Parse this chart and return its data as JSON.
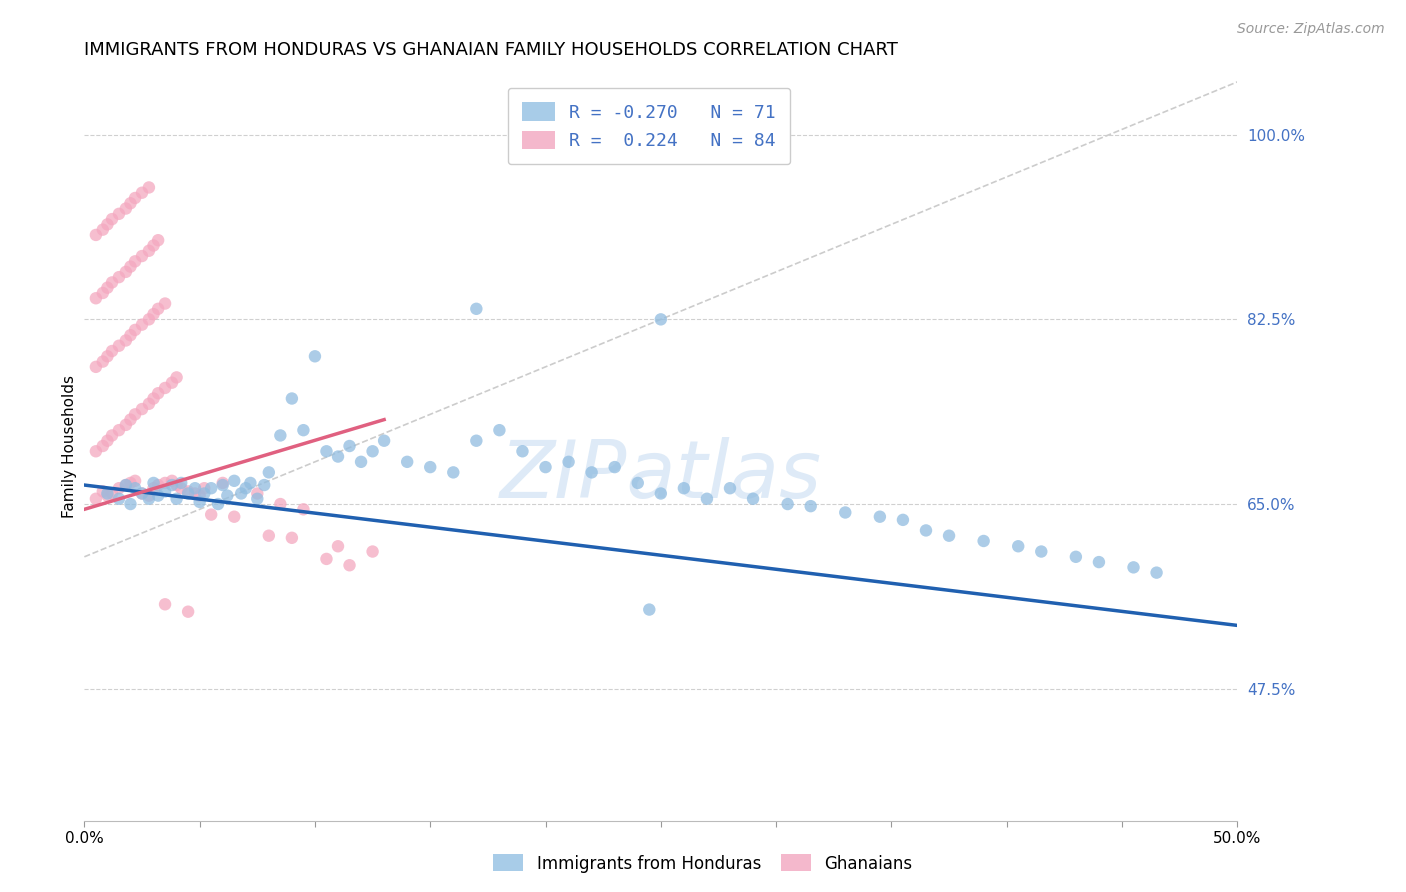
{
  "title": "IMMIGRANTS FROM HONDURAS VS GHANAIAN FAMILY HOUSEHOLDS CORRELATION CHART",
  "source": "Source: ZipAtlas.com",
  "ylabel": "Family Households",
  "ytick_vals": [
    0.475,
    0.65,
    0.825,
    1.0
  ],
  "ytick_labels": [
    "47.5%",
    "65.0%",
    "82.5%",
    "100.0%"
  ],
  "xtick_vals": [
    0.0,
    0.05,
    0.1,
    0.15,
    0.2,
    0.25,
    0.3,
    0.35,
    0.4,
    0.45,
    0.5
  ],
  "xlim": [
    0.0,
    0.5
  ],
  "ylim": [
    0.35,
    1.06
  ],
  "blue_scatter_x": [
    0.01,
    0.015,
    0.018,
    0.02,
    0.022,
    0.025,
    0.028,
    0.03,
    0.032,
    0.035,
    0.038,
    0.04,
    0.042,
    0.045,
    0.048,
    0.05,
    0.052,
    0.055,
    0.058,
    0.06,
    0.062,
    0.065,
    0.068,
    0.07,
    0.072,
    0.075,
    0.078,
    0.08,
    0.085,
    0.09,
    0.095,
    0.1,
    0.105,
    0.11,
    0.115,
    0.12,
    0.125,
    0.13,
    0.14,
    0.15,
    0.16,
    0.17,
    0.18,
    0.19,
    0.2,
    0.21,
    0.22,
    0.23,
    0.24,
    0.25,
    0.26,
    0.27,
    0.28,
    0.29,
    0.305,
    0.315,
    0.33,
    0.345,
    0.355,
    0.365,
    0.375,
    0.39,
    0.405,
    0.415,
    0.43,
    0.44,
    0.455,
    0.465,
    0.25,
    0.17,
    0.245
  ],
  "blue_scatter_y": [
    0.66,
    0.655,
    0.668,
    0.65,
    0.665,
    0.66,
    0.655,
    0.67,
    0.658,
    0.662,
    0.668,
    0.655,
    0.67,
    0.66,
    0.665,
    0.652,
    0.66,
    0.665,
    0.65,
    0.668,
    0.658,
    0.672,
    0.66,
    0.665,
    0.67,
    0.655,
    0.668,
    0.68,
    0.715,
    0.75,
    0.72,
    0.79,
    0.7,
    0.695,
    0.705,
    0.69,
    0.7,
    0.71,
    0.69,
    0.685,
    0.68,
    0.71,
    0.72,
    0.7,
    0.685,
    0.69,
    0.68,
    0.685,
    0.67,
    0.66,
    0.665,
    0.655,
    0.665,
    0.655,
    0.65,
    0.648,
    0.642,
    0.638,
    0.635,
    0.625,
    0.62,
    0.615,
    0.61,
    0.605,
    0.6,
    0.595,
    0.59,
    0.585,
    0.825,
    0.835,
    0.55
  ],
  "pink_scatter_x": [
    0.005,
    0.008,
    0.01,
    0.012,
    0.015,
    0.018,
    0.02,
    0.022,
    0.025,
    0.028,
    0.03,
    0.032,
    0.035,
    0.038,
    0.04,
    0.042,
    0.045,
    0.048,
    0.05,
    0.052,
    0.005,
    0.008,
    0.01,
    0.012,
    0.015,
    0.018,
    0.02,
    0.022,
    0.025,
    0.028,
    0.03,
    0.032,
    0.035,
    0.038,
    0.04,
    0.005,
    0.008,
    0.01,
    0.012,
    0.015,
    0.018,
    0.02,
    0.022,
    0.025,
    0.028,
    0.03,
    0.032,
    0.035,
    0.005,
    0.008,
    0.01,
    0.012,
    0.015,
    0.018,
    0.02,
    0.022,
    0.025,
    0.028,
    0.03,
    0.032,
    0.005,
    0.008,
    0.01,
    0.012,
    0.015,
    0.018,
    0.02,
    0.022,
    0.025,
    0.028,
    0.055,
    0.065,
    0.08,
    0.09,
    0.11,
    0.125,
    0.085,
    0.095,
    0.06,
    0.075,
    0.035,
    0.045,
    0.105,
    0.115
  ],
  "pink_scatter_y": [
    0.655,
    0.662,
    0.658,
    0.66,
    0.665,
    0.668,
    0.67,
    0.672,
    0.66,
    0.658,
    0.665,
    0.668,
    0.67,
    0.672,
    0.668,
    0.665,
    0.662,
    0.66,
    0.658,
    0.665,
    0.7,
    0.705,
    0.71,
    0.715,
    0.72,
    0.725,
    0.73,
    0.735,
    0.74,
    0.745,
    0.75,
    0.755,
    0.76,
    0.765,
    0.77,
    0.78,
    0.785,
    0.79,
    0.795,
    0.8,
    0.805,
    0.81,
    0.815,
    0.82,
    0.825,
    0.83,
    0.835,
    0.84,
    0.845,
    0.85,
    0.855,
    0.86,
    0.865,
    0.87,
    0.875,
    0.88,
    0.885,
    0.89,
    0.895,
    0.9,
    0.905,
    0.91,
    0.915,
    0.92,
    0.925,
    0.93,
    0.935,
    0.94,
    0.945,
    0.95,
    0.64,
    0.638,
    0.62,
    0.618,
    0.61,
    0.605,
    0.65,
    0.645,
    0.67,
    0.66,
    0.555,
    0.548,
    0.598,
    0.592
  ],
  "blue_line_x": [
    0.0,
    0.5
  ],
  "blue_line_y": [
    0.668,
    0.535
  ],
  "pink_line_x": [
    0.0,
    0.13
  ],
  "pink_line_y": [
    0.645,
    0.73
  ],
  "diag_line_x": [
    0.0,
    0.5
  ],
  "diag_line_y": [
    0.6,
    1.05
  ],
  "blue_color": "#90bce0",
  "pink_color": "#f4a8c0",
  "blue_line_color": "#2060b0",
  "pink_line_color": "#e06080",
  "diag_color": "#cccccc",
  "watermark_text": "ZIPatlas",
  "title_fontsize": 13,
  "source_fontsize": 10,
  "axis_label_color": "#4472c4",
  "legend_blue_label": "R = -0.270   N = 71",
  "legend_pink_label": "R =  0.224   N = 84",
  "bottom_legend_blue": "Immigrants from Honduras",
  "bottom_legend_pink": "Ghanaians"
}
